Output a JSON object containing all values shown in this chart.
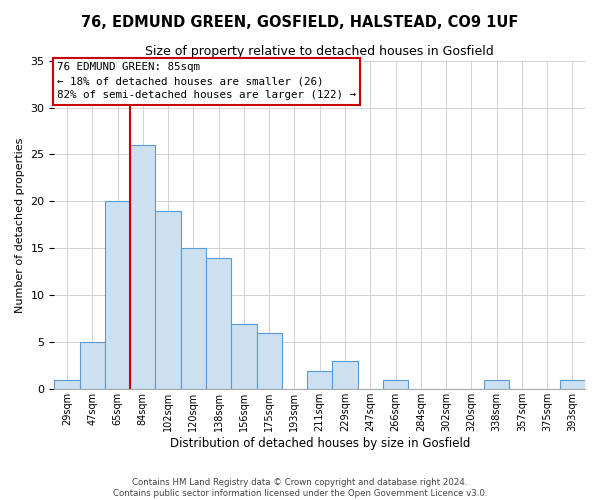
{
  "title": "76, EDMUND GREEN, GOSFIELD, HALSTEAD, CO9 1UF",
  "subtitle": "Size of property relative to detached houses in Gosfield",
  "xlabel": "Distribution of detached houses by size in Gosfield",
  "ylabel": "Number of detached properties",
  "footer_line1": "Contains HM Land Registry data © Crown copyright and database right 2024.",
  "footer_line2": "Contains public sector information licensed under the Open Government Licence v3.0.",
  "bin_labels": [
    "29sqm",
    "47sqm",
    "65sqm",
    "84sqm",
    "102sqm",
    "120sqm",
    "138sqm",
    "156sqm",
    "175sqm",
    "193sqm",
    "211sqm",
    "229sqm",
    "247sqm",
    "266sqm",
    "284sqm",
    "302sqm",
    "320sqm",
    "338sqm",
    "357sqm",
    "375sqm",
    "393sqm"
  ],
  "bar_values": [
    1,
    5,
    20,
    26,
    19,
    15,
    14,
    7,
    6,
    0,
    2,
    3,
    0,
    1,
    0,
    0,
    0,
    1,
    0,
    0,
    1
  ],
  "bar_color": "#cce0f0",
  "bar_edge_color": "#5b9bd5",
  "vline_color": "#cc0000",
  "annotation_title": "76 EDMUND GREEN: 85sqm",
  "annotation_line1": "← 18% of detached houses are smaller (26)",
  "annotation_line2": "82% of semi-detached houses are larger (122) →",
  "annotation_box_edge_color": "#cc0000",
  "ylim": [
    0,
    35
  ],
  "yticks": [
    0,
    5,
    10,
    15,
    20,
    25,
    30,
    35
  ]
}
